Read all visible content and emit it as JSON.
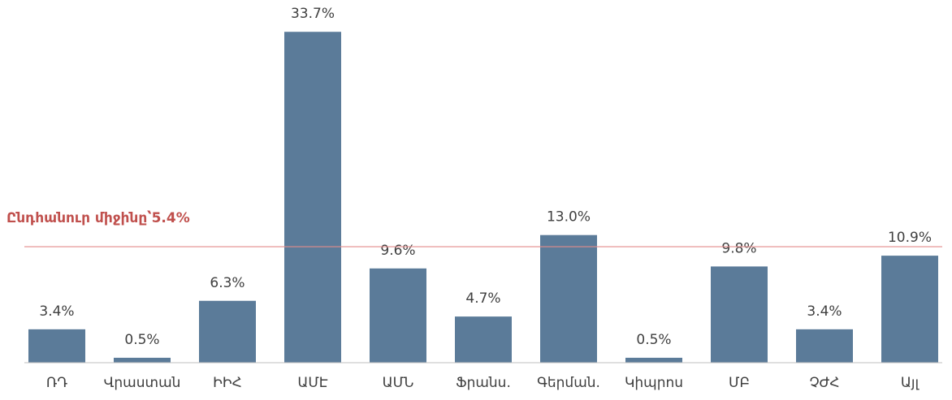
{
  "chart_data": {
    "type": "bar",
    "categories": [
      "ՌԴ",
      "Վրաստան",
      "ԻԻՀ",
      "ԱՄԷ",
      "ԱՄՆ",
      "Ֆրանս.",
      "Գերման.",
      "Կիպրոս",
      "ՄԲ",
      "ՉԺՀ",
      "Այլ"
    ],
    "values": [
      3.4,
      0.5,
      6.3,
      33.7,
      9.6,
      4.7,
      13.0,
      0.5,
      9.8,
      3.4,
      10.9
    ],
    "value_labels": [
      "3.4%",
      "0.5%",
      "6.3%",
      "33.7%",
      "9.6%",
      "4.7%",
      "13.0%",
      "0.5%",
      "9.8%",
      "3.4%",
      "10.9%"
    ],
    "color": "#5b7b99",
    "ylim": [
      0,
      35
    ],
    "average": {
      "value": 5.4,
      "axis": "y2",
      "color": "#e38b8b",
      "annotation": "Ընդհանուր միջինը՝5.4%",
      "annotation_color": "#c0504d"
    },
    "y2lim": [
      0,
      16
    ]
  }
}
